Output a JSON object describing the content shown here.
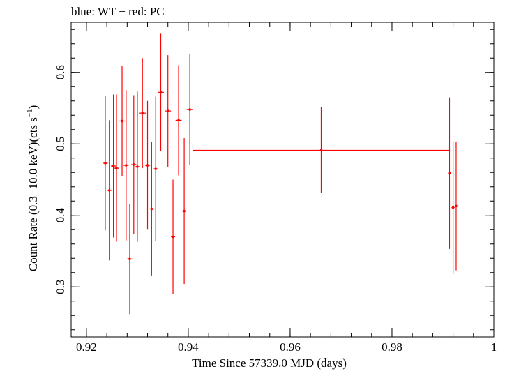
{
  "chart_data": {
    "type": "scatter",
    "title": "blue: WT − red: PC",
    "xlabel": "Time Since 57339.0 MJD (days)",
    "ylabel_main": "Count Rate (0.3−10.0 keV)(cts s",
    "ylabel_sup": "−1",
    "ylabel_end": ")",
    "xlim": [
      0.917,
      1.0
    ],
    "ylim": [
      0.23,
      0.67
    ],
    "xticks": [
      0.92,
      0.94,
      0.96,
      0.98,
      1.0
    ],
    "xtick_labels": [
      "0.92",
      "0.94",
      "0.96",
      "0.98",
      "1"
    ],
    "yticks": [
      0.3,
      0.4,
      0.5,
      0.6
    ],
    "ytick_labels": [
      "0.3",
      "0.4",
      "0.5",
      "0.6"
    ],
    "grid": false,
    "series": [
      {
        "color": "#ff0000",
        "points": [
          {
            "x": 0.9237,
            "y": 0.473,
            "xerr": 0.0005,
            "yerr": 0.094
          },
          {
            "x": 0.9245,
            "y": 0.435,
            "xerr": 0.0005,
            "yerr": 0.098
          },
          {
            "x": 0.9253,
            "y": 0.469,
            "xerr": 0.0005,
            "yerr": 0.1
          },
          {
            "x": 0.9259,
            "y": 0.466,
            "xerr": 0.0005,
            "yerr": 0.103
          },
          {
            "x": 0.927,
            "y": 0.532,
            "xerr": 0.0006,
            "yerr": 0.077
          },
          {
            "x": 0.9278,
            "y": 0.47,
            "xerr": 0.0005,
            "yerr": 0.105
          },
          {
            "x": 0.9285,
            "y": 0.339,
            "xerr": 0.0005,
            "yerr": 0.077
          },
          {
            "x": 0.9293,
            "y": 0.471,
            "xerr": 0.0005,
            "yerr": 0.097
          },
          {
            "x": 0.93,
            "y": 0.468,
            "xerr": 0.0005,
            "yerr": 0.105
          },
          {
            "x": 0.931,
            "y": 0.543,
            "xerr": 0.0007,
            "yerr": 0.077
          },
          {
            "x": 0.932,
            "y": 0.47,
            "xerr": 0.0005,
            "yerr": 0.09
          },
          {
            "x": 0.9328,
            "y": 0.409,
            "xerr": 0.0004,
            "yerr": 0.094
          },
          {
            "x": 0.9336,
            "y": 0.465,
            "xerr": 0.0004,
            "yerr": 0.101
          },
          {
            "x": 0.9346,
            "y": 0.572,
            "xerr": 0.0006,
            "yerr": 0.082
          },
          {
            "x": 0.936,
            "y": 0.546,
            "xerr": 0.0006,
            "yerr": 0.078
          },
          {
            "x": 0.937,
            "y": 0.37,
            "xerr": 0.0004,
            "yerr": 0.08
          },
          {
            "x": 0.9381,
            "y": 0.533,
            "xerr": 0.0006,
            "yerr": 0.077
          },
          {
            "x": 0.9392,
            "y": 0.406,
            "xerr": 0.0004,
            "yerr": 0.102
          },
          {
            "x": 0.9403,
            "y": 0.548,
            "xerr": 0.0006,
            "yerr": 0.078
          },
          {
            "x": 0.9661,
            "y": 0.491,
            "xerr": 0.0252,
            "yerr": 0.06
          },
          {
            "x": 0.9913,
            "y": 0.459,
            "xerr": 0.0003,
            "yerr": 0.106
          },
          {
            "x": 0.992,
            "y": 0.411,
            "xerr": 0.0003,
            "yerr": 0.093
          },
          {
            "x": 0.9926,
            "y": 0.413,
            "xerr": 0.0003,
            "yerr": 0.09
          }
        ]
      }
    ]
  }
}
